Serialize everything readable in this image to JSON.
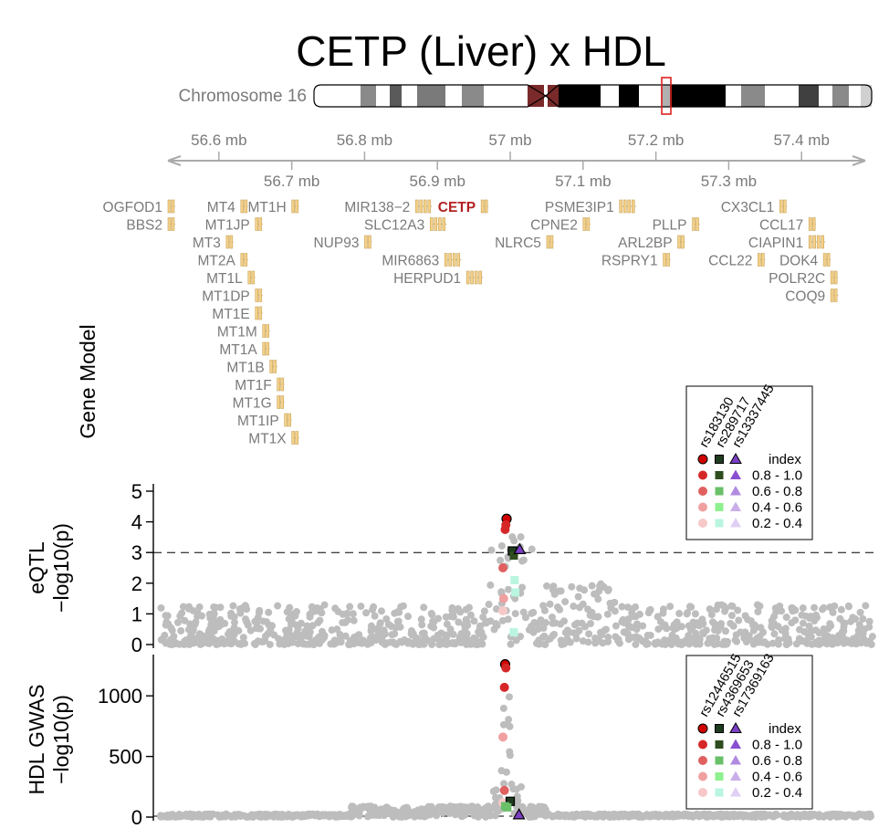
{
  "title": "CETP (Liver) x HDL",
  "chromosome_label": "Chromosome 16",
  "gene_model_label": "Gene Model",
  "colors": {
    "ld_red": "#d62728",
    "ld_dark": "#1f3b1f",
    "ld_purple": "#7b3fc4",
    "gray_point": "#bdbdbd",
    "gene": "#f4d08a",
    "highlight_gene": "#b22222"
  },
  "chart_data": [
    {
      "type": "scatter",
      "name": "position-axis",
      "upper_ticks": [
        "56.6 mb",
        "56.8 mb",
        "57 mb",
        "57.2 mb",
        "57.4 mb"
      ],
      "lower_ticks": [
        "56.7 mb",
        "56.9 mb",
        "57.1 mb",
        "57.3 mb"
      ],
      "xlim": [
        56.52,
        57.5
      ]
    },
    {
      "type": "table",
      "name": "gene-model",
      "genes": [
        {
          "name": "OGFOD1",
          "pos": 56.52,
          "row": 0
        },
        {
          "name": "MT4",
          "pos": 56.62,
          "row": 0
        },
        {
          "name": "MT1H",
          "pos": 56.69,
          "row": 0
        },
        {
          "name": "MIR138−2",
          "pos": 56.86,
          "row": 0
        },
        {
          "name": "CETP",
          "pos": 56.95,
          "row": 0,
          "highlight": true
        },
        {
          "name": "PSME3IP1",
          "pos": 57.14,
          "row": 0
        },
        {
          "name": "CX3CL1",
          "pos": 57.36,
          "row": 0
        },
        {
          "name": "BBS2",
          "pos": 56.52,
          "row": 1
        },
        {
          "name": "MT1JP",
          "pos": 56.64,
          "row": 1
        },
        {
          "name": "SLC12A3",
          "pos": 56.88,
          "row": 1
        },
        {
          "name": "CPNE2",
          "pos": 57.09,
          "row": 1
        },
        {
          "name": "PLLP",
          "pos": 57.24,
          "row": 1
        },
        {
          "name": "CCL17",
          "pos": 57.4,
          "row": 1
        },
        {
          "name": "MT3",
          "pos": 56.6,
          "row": 2
        },
        {
          "name": "NUP93",
          "pos": 56.79,
          "row": 2
        },
        {
          "name": "NLRC5",
          "pos": 57.04,
          "row": 2
        },
        {
          "name": "ARL2BP",
          "pos": 57.22,
          "row": 2
        },
        {
          "name": "CIAPIN1",
          "pos": 57.4,
          "row": 2
        },
        {
          "name": "MT2A",
          "pos": 56.62,
          "row": 3
        },
        {
          "name": "MIR6863",
          "pos": 56.9,
          "row": 3
        },
        {
          "name": "RSPRY1",
          "pos": 57.2,
          "row": 3
        },
        {
          "name": "CCL22",
          "pos": 57.33,
          "row": 3
        },
        {
          "name": "DOK4",
          "pos": 57.42,
          "row": 3
        },
        {
          "name": "MT1L",
          "pos": 56.63,
          "row": 4
        },
        {
          "name": "HERPUD1",
          "pos": 56.93,
          "row": 4
        },
        {
          "name": "POLR2C",
          "pos": 57.43,
          "row": 4
        },
        {
          "name": "MT1DP",
          "pos": 56.64,
          "row": 5
        },
        {
          "name": "COQ9",
          "pos": 57.43,
          "row": 5
        },
        {
          "name": "MT1E",
          "pos": 56.64,
          "row": 6
        },
        {
          "name": "MT1M",
          "pos": 56.65,
          "row": 7
        },
        {
          "name": "MT1A",
          "pos": 56.65,
          "row": 8
        },
        {
          "name": "MT1B",
          "pos": 56.66,
          "row": 9
        },
        {
          "name": "MT1F",
          "pos": 56.67,
          "row": 10
        },
        {
          "name": "MT1G",
          "pos": 56.67,
          "row": 11
        },
        {
          "name": "MT1IP",
          "pos": 56.68,
          "row": 12
        },
        {
          "name": "MT1X",
          "pos": 56.69,
          "row": 13
        }
      ]
    },
    {
      "type": "scatter",
      "name": "eqtl",
      "ylabel": [
        "eQTL",
        "−log10(p)"
      ],
      "ylim": [
        0,
        5
      ],
      "yticks": [
        0,
        1,
        2,
        3,
        4,
        5
      ],
      "threshold": 3,
      "legend": {
        "snps": [
          "rs183130",
          "rs289717",
          "rs13337445"
        ],
        "title": "index",
        "bins": [
          "0.8 - 1.0",
          "0.6 - 0.8",
          "0.4 - 0.6",
          "0.2 - 0.4"
        ]
      },
      "highlights": [
        {
          "x": 56.995,
          "y": 4.1,
          "shape": "circle",
          "ld": "index"
        },
        {
          "x": 56.994,
          "y": 3.9,
          "shape": "circle",
          "ld": "0.8 - 1.0"
        },
        {
          "x": 56.993,
          "y": 3.75,
          "shape": "circle",
          "ld": "0.8 - 1.0"
        },
        {
          "x": 57.003,
          "y": 3.05,
          "shape": "square",
          "ld": "index"
        },
        {
          "x": 57.005,
          "y": 2.9,
          "shape": "square",
          "ld": "0.8 - 1.0"
        },
        {
          "x": 57.013,
          "y": 3.1,
          "shape": "triangle",
          "ld": "index"
        },
        {
          "x": 56.99,
          "y": 2.5,
          "shape": "circle",
          "ld": "0.6 - 0.8"
        },
        {
          "x": 56.991,
          "y": 1.5,
          "shape": "circle",
          "ld": "0.4 - 0.6"
        },
        {
          "x": 56.99,
          "y": 1.1,
          "shape": "circle",
          "ld": "0.2 - 0.4"
        },
        {
          "x": 57.006,
          "y": 2.1,
          "shape": "square",
          "ld": "0.2 - 0.4"
        },
        {
          "x": 57.007,
          "y": 1.7,
          "shape": "square",
          "ld": "0.2 - 0.4"
        },
        {
          "x": 57.005,
          "y": 0.4,
          "shape": "square",
          "ld": "0.2 - 0.4"
        }
      ]
    },
    {
      "type": "scatter",
      "name": "gwas",
      "ylabel": [
        "HDL GWAS",
        "−log10(p)"
      ],
      "ylim": [
        0,
        1280
      ],
      "yticks": [
        0,
        500,
        1000
      ],
      "threshold": 7.3,
      "legend": {
        "snps": [
          "rs12446515",
          "rs4369653",
          "rs17369163"
        ],
        "title": "index",
        "bins": [
          "0.8 - 1.0",
          "0.6 - 0.8",
          "0.4 - 0.6",
          "0.2 - 0.4"
        ]
      },
      "highlights": [
        {
          "x": 56.993,
          "y": 1260,
          "shape": "circle",
          "ld": "index"
        },
        {
          "x": 56.994,
          "y": 1230,
          "shape": "circle",
          "ld": "0.8 - 1.0"
        },
        {
          "x": 56.992,
          "y": 1070,
          "shape": "circle",
          "ld": "0.8 - 1.0"
        },
        {
          "x": 56.99,
          "y": 660,
          "shape": "circle",
          "ld": "0.4 - 0.6"
        },
        {
          "x": 56.992,
          "y": 220,
          "shape": "circle",
          "ld": "0.6 - 0.8"
        },
        {
          "x": 56.99,
          "y": 120,
          "shape": "circle",
          "ld": "0.2 - 0.4"
        },
        {
          "x": 57.0,
          "y": 130,
          "shape": "square",
          "ld": "index"
        },
        {
          "x": 56.996,
          "y": 80,
          "shape": "square",
          "ld": "0.6 - 0.8"
        },
        {
          "x": 56.993,
          "y": 90,
          "shape": "square",
          "ld": "0.6 - 0.8"
        },
        {
          "x": 57.012,
          "y": 20,
          "shape": "triangle",
          "ld": "index"
        }
      ]
    }
  ]
}
